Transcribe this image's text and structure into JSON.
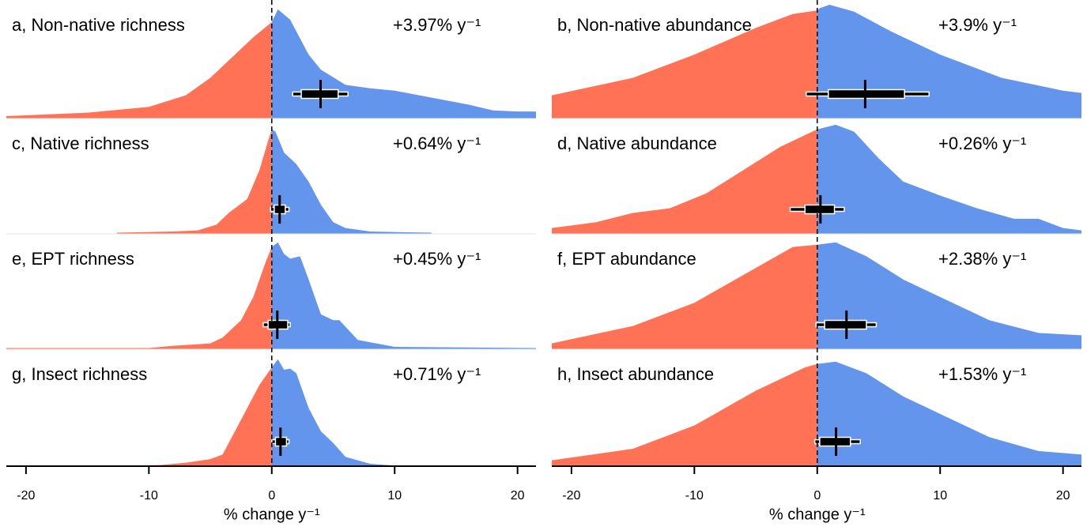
{
  "chart_data": [
    {
      "type": "density",
      "title": "a, Non-native richness",
      "annotation": "+3.97% y⁻¹",
      "fill_below_zero": "#ff7256",
      "fill_above_zero": "#6495ed",
      "x": [
        -21.6,
        -15,
        -10,
        -7,
        -5,
        -3,
        -1.5,
        0,
        0.5,
        1.5,
        3,
        4,
        6,
        8,
        10,
        12,
        14,
        16,
        18,
        20,
        21.5
      ],
      "density": [
        0.02,
        0.05,
        0.1,
        0.2,
        0.35,
        0.55,
        0.7,
        0.83,
        0.94,
        0.85,
        0.55,
        0.42,
        0.29,
        0.26,
        0.24,
        0.2,
        0.16,
        0.12,
        0.07,
        0.06,
        0.06
      ],
      "estimate": 3.97,
      "ci_inner": [
        2.4,
        5.4
      ],
      "ci_outer": [
        1.7,
        6.2
      ],
      "xlim": [
        -21.6,
        21.5
      ]
    },
    {
      "type": "density",
      "title": "b, Non-native abundance",
      "annotation": "+3.9% y⁻¹",
      "fill_below_zero": "#ff7256",
      "fill_above_zero": "#6495ed",
      "x": [
        -21.6,
        -15,
        -10,
        -5,
        -2,
        0,
        0.2,
        1,
        3,
        6,
        10,
        15,
        20,
        21.5
      ],
      "density": [
        0.2,
        0.35,
        0.55,
        0.78,
        0.9,
        0.93,
        0.95,
        0.98,
        0.92,
        0.75,
        0.55,
        0.35,
        0.24,
        0.22
      ],
      "estimate": 3.9,
      "ci_inner": [
        0.9,
        7.1
      ],
      "ci_outer": [
        -0.9,
        9.1
      ],
      "xlim": [
        -21.6,
        21.5
      ]
    },
    {
      "type": "density",
      "title": "c, Native richness",
      "annotation": "+0.64% y⁻¹",
      "fill_below_zero": "#ff7256",
      "fill_above_zero": "#6495ed",
      "x": [
        -12.6,
        -8,
        -6,
        -4.5,
        -3.5,
        -2,
        -1,
        -0.3,
        0,
        0.3,
        1,
        2,
        3,
        4,
        5,
        6,
        8,
        13
      ],
      "density": [
        0.01,
        0.02,
        0.03,
        0.08,
        0.18,
        0.3,
        0.55,
        0.8,
        0.9,
        0.88,
        0.7,
        0.6,
        0.45,
        0.25,
        0.1,
        0.05,
        0.02,
        0.01
      ],
      "estimate": 0.64,
      "ci_inner": [
        0.2,
        1.1
      ],
      "ci_outer": [
        -0.1,
        1.4
      ],
      "xlim": [
        -21.6,
        21.5
      ]
    },
    {
      "type": "density",
      "title": "d, Native abundance",
      "annotation": "+0.26% y⁻¹",
      "fill_below_zero": "#ff7256",
      "fill_above_zero": "#6495ed",
      "x": [
        -21.6,
        -18,
        -15,
        -12,
        -9,
        -6,
        -3,
        -1,
        0,
        1.5,
        3,
        5,
        7,
        10,
        13,
        16,
        18,
        20,
        21.5
      ],
      "density": [
        0.05,
        0.1,
        0.18,
        0.22,
        0.35,
        0.55,
        0.75,
        0.85,
        0.9,
        0.94,
        0.88,
        0.65,
        0.45,
        0.33,
        0.22,
        0.13,
        0.13,
        0.05,
        0.03
      ],
      "estimate": 0.26,
      "ci_inner": [
        -1,
        1.4
      ],
      "ci_outer": [
        -2.2,
        2.2
      ],
      "xlim": [
        -21.6,
        21.5
      ]
    },
    {
      "type": "density",
      "title": "e, EPT richness",
      "annotation": "+0.45% y⁻¹",
      "fill_below_zero": "#ff7256",
      "fill_above_zero": "#6495ed",
      "x": [
        -21.6,
        -10,
        -8,
        -5,
        -4,
        -2.5,
        -1.5,
        -0.5,
        0,
        0.5,
        1,
        1.5,
        2.3,
        3,
        4,
        5,
        5.5,
        7,
        10,
        21.5
      ],
      "density": [
        0.01,
        0.01,
        0.03,
        0.05,
        0.1,
        0.25,
        0.45,
        0.75,
        0.88,
        0.92,
        0.82,
        0.78,
        0.8,
        0.6,
        0.3,
        0.25,
        0.25,
        0.08,
        0.02,
        0.01
      ],
      "estimate": 0.45,
      "ci_inner": [
        -0.3,
        1.3
      ],
      "ci_outer": [
        -0.7,
        1.5
      ],
      "xlim": [
        -21.6,
        21.5
      ]
    },
    {
      "type": "density",
      "title": "f, EPT abundance",
      "annotation": "+2.38% y⁻¹",
      "fill_below_zero": "#ff7256",
      "fill_above_zero": "#6495ed",
      "x": [
        -21.6,
        -15,
        -10,
        -5,
        -2,
        0,
        1.5,
        4,
        7,
        10,
        14,
        18,
        21.5
      ],
      "density": [
        0.05,
        0.2,
        0.4,
        0.7,
        0.88,
        0.9,
        0.92,
        0.8,
        0.6,
        0.45,
        0.25,
        0.14,
        0.12
      ],
      "estimate": 2.38,
      "ci_inner": [
        0.6,
        4
      ],
      "ci_outer": [
        -0.1,
        4.8
      ],
      "xlim": [
        -21.6,
        21.5
      ]
    },
    {
      "type": "density",
      "title": "g, Insect richness",
      "annotation": "+0.71% y⁻¹",
      "fill_below_zero": "#ff7256",
      "fill_above_zero": "#6495ed",
      "x": [
        -21.6,
        -12,
        -9,
        -7,
        -5,
        -4,
        -2.5,
        -1,
        0,
        0.5,
        1,
        1.5,
        2,
        3,
        4,
        5,
        6,
        8,
        10,
        21.5
      ],
      "density": [
        0,
        0.003,
        0.01,
        0.03,
        0.06,
        0.1,
        0.4,
        0.7,
        0.85,
        0.92,
        0.83,
        0.84,
        0.8,
        0.5,
        0.3,
        0.2,
        0.08,
        0.02,
        0.005,
        0
      ],
      "estimate": 0.71,
      "ci_inner": [
        0.3,
        1.2
      ],
      "ci_outer": [
        0,
        1.4
      ],
      "xlim": [
        -21.6,
        21.5
      ],
      "xticks": [
        -20,
        -10,
        0,
        10,
        20
      ],
      "xlabel": "% change y⁻¹"
    },
    {
      "type": "density",
      "title": "h, Insect abundance",
      "annotation": "+1.53% y⁻¹",
      "fill_below_zero": "#ff7256",
      "fill_above_zero": "#6495ed",
      "x": [
        -21.6,
        -15,
        -10,
        -5,
        -1,
        0,
        1.5,
        4,
        7,
        10,
        14,
        18,
        21.5
      ],
      "density": [
        0.05,
        0.15,
        0.35,
        0.65,
        0.85,
        0.88,
        0.9,
        0.8,
        0.6,
        0.45,
        0.25,
        0.13,
        0.1
      ],
      "estimate": 1.53,
      "ci_inner": [
        0.2,
        2.7
      ],
      "ci_outer": [
        -0.2,
        3.5
      ],
      "xlim": [
        -21.6,
        21.5
      ],
      "xticks": [
        -20,
        -10,
        0,
        10,
        20
      ],
      "xlabel": "% change y⁻¹"
    }
  ]
}
